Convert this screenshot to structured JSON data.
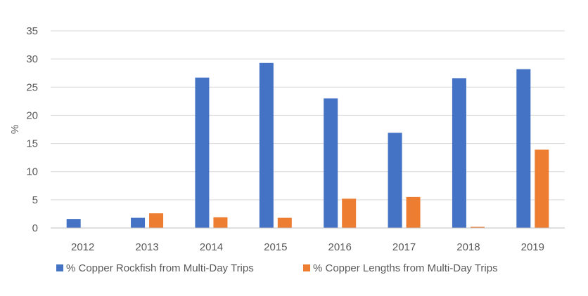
{
  "chart_data": {
    "type": "bar",
    "title": "",
    "xlabel": "",
    "ylabel": "%",
    "ylim": [
      0,
      35
    ],
    "yticks": [
      "0",
      "5",
      "10",
      "15",
      "20",
      "25",
      "30",
      "35"
    ],
    "categories": [
      "2012",
      "2013",
      "2014",
      "2015",
      "2016",
      "2017",
      "2018",
      "2019"
    ],
    "series": [
      {
        "name": "% Copper Rockfish from Multi-Day Trips",
        "color": "#4472c4",
        "values": [
          1.6,
          1.8,
          26.7,
          29.3,
          23.0,
          16.9,
          26.6,
          28.2
        ]
      },
      {
        "name": "% Copper Lengths from Multi-Day Trips",
        "color": "#ed7d31",
        "values": [
          0,
          2.6,
          1.9,
          1.8,
          5.2,
          5.5,
          0.2,
          13.9
        ]
      }
    ],
    "grid": true,
    "legend_position": "bottom"
  }
}
